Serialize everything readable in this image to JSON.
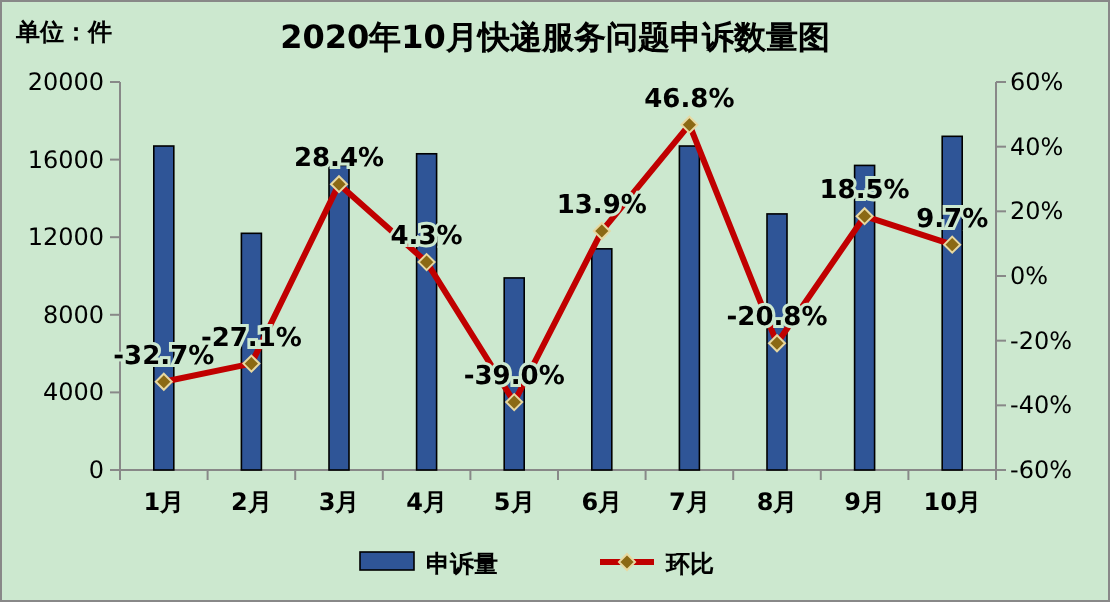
{
  "chart_data": {
    "type": "bar",
    "title": "2020年10月快递服务问题申诉数量图",
    "annotations": [
      "单位：件"
    ],
    "categories": [
      "1月",
      "2月",
      "3月",
      "4月",
      "5月",
      "6月",
      "7月",
      "8月",
      "9月",
      "10月"
    ],
    "series": [
      {
        "name": "申诉量",
        "color": "#2f5597",
        "values": [
          16700,
          12200,
          15700,
          16300,
          9900,
          11400,
          16700,
          13200,
          15700,
          17200
        ]
      },
      {
        "name": "环比",
        "type": "line",
        "axis": "y2",
        "color": "#c00000",
        "values": [
          -32.7,
          -27.1,
          28.4,
          4.3,
          -39.0,
          13.9,
          46.8,
          -20.8,
          18.5,
          9.7
        ],
        "value_labels": [
          "-32.7%",
          "-27.1%",
          "28.4%",
          "4.3%",
          "-39.0%",
          "13.9%",
          "46.8%",
          "-20.8%",
          "18.5%",
          "9.7%"
        ]
      }
    ],
    "ylim": [
      0,
      20000
    ],
    "yticks": [
      0,
      4000,
      8000,
      12000,
      16000,
      20000
    ],
    "y2lim": [
      -60,
      60
    ],
    "y2ticks": [
      {
        "value": -60,
        "label": "-60%"
      },
      {
        "value": -40,
        "label": "-40%"
      },
      {
        "value": -20,
        "label": "-20%"
      },
      {
        "value": 0,
        "label": "0%"
      },
      {
        "value": 20,
        "label": "20%"
      },
      {
        "value": 40,
        "label": "40%"
      },
      {
        "value": 60,
        "label": "60%"
      }
    ],
    "marker": "diamond",
    "legend": "bottom",
    "grid": false
  }
}
